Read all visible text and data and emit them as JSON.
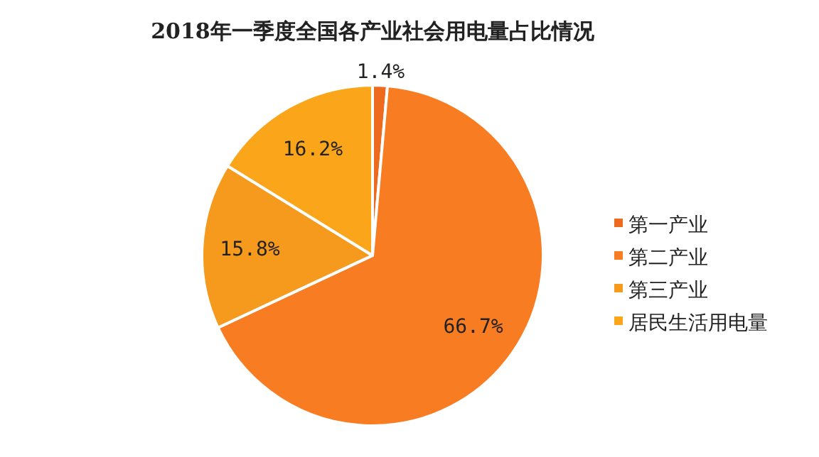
{
  "chart_data": {
    "type": "pie",
    "title": "2018年一季度全国各产业社会用电量占比情况",
    "categories": [
      "第一产业",
      "第二产业",
      "第三产业",
      "居民生活用电量"
    ],
    "values": [
      1.4,
      66.7,
      15.8,
      16.2
    ],
    "value_labels": [
      "1.4%",
      "66.7%",
      "15.8%",
      "16.2%"
    ],
    "colors": [
      "#ee6a1f",
      "#f87c22",
      "#f69a1e",
      "#fba51a"
    ],
    "legend": "right"
  }
}
